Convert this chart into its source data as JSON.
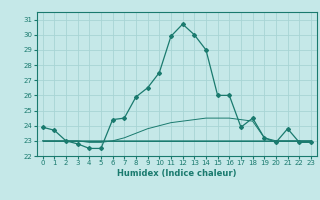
{
  "xlabel": "Humidex (Indice chaleur)",
  "ylabel": "",
  "bg_color": "#c5e8e8",
  "line_color": "#1a7a6e",
  "grid_color": "#a8d4d4",
  "x_values": [
    0,
    1,
    2,
    3,
    4,
    5,
    6,
    7,
    8,
    9,
    10,
    11,
    12,
    13,
    14,
    15,
    16,
    17,
    18,
    19,
    20,
    21,
    22,
    23
  ],
  "series": [
    [
      23.9,
      23.7,
      23.0,
      22.8,
      22.5,
      22.5,
      24.4,
      24.5,
      25.9,
      26.5,
      27.5,
      29.9,
      30.7,
      30.0,
      29.0,
      26.0,
      26.0,
      23.9,
      24.5,
      23.2,
      22.9,
      23.8,
      22.9,
      22.9
    ],
    [
      23.0,
      23.0,
      23.0,
      23.0,
      23.0,
      23.0,
      23.0,
      23.2,
      23.5,
      23.8,
      24.0,
      24.2,
      24.3,
      24.4,
      24.5,
      24.5,
      24.5,
      24.4,
      24.3,
      23.2,
      23.0,
      23.0,
      23.0,
      23.0
    ],
    [
      23.0,
      23.0,
      23.0,
      23.0,
      23.0,
      23.0,
      23.0,
      23.0,
      23.0,
      23.0,
      23.0,
      23.0,
      23.0,
      23.0,
      23.0,
      23.0,
      23.0,
      23.0,
      23.0,
      23.0,
      23.0,
      23.0,
      23.0,
      23.0
    ],
    [
      23.0,
      23.0,
      23.0,
      23.0,
      22.9,
      22.9,
      23.0,
      23.0,
      23.0,
      23.0,
      23.0,
      23.0,
      23.0,
      23.0,
      23.0,
      23.0,
      23.0,
      23.0,
      23.0,
      23.0,
      23.0,
      23.0,
      23.0,
      23.0
    ]
  ],
  "ylim": [
    22.0,
    31.5
  ],
  "yticks": [
    22,
    23,
    24,
    25,
    26,
    27,
    28,
    29,
    30,
    31
  ],
  "xlim": [
    -0.5,
    23.5
  ],
  "xticks": [
    0,
    1,
    2,
    3,
    4,
    5,
    6,
    7,
    8,
    9,
    10,
    11,
    12,
    13,
    14,
    15,
    16,
    17,
    18,
    19,
    20,
    21,
    22,
    23
  ],
  "tick_fontsize": 5.0,
  "xlabel_fontsize": 6.0
}
